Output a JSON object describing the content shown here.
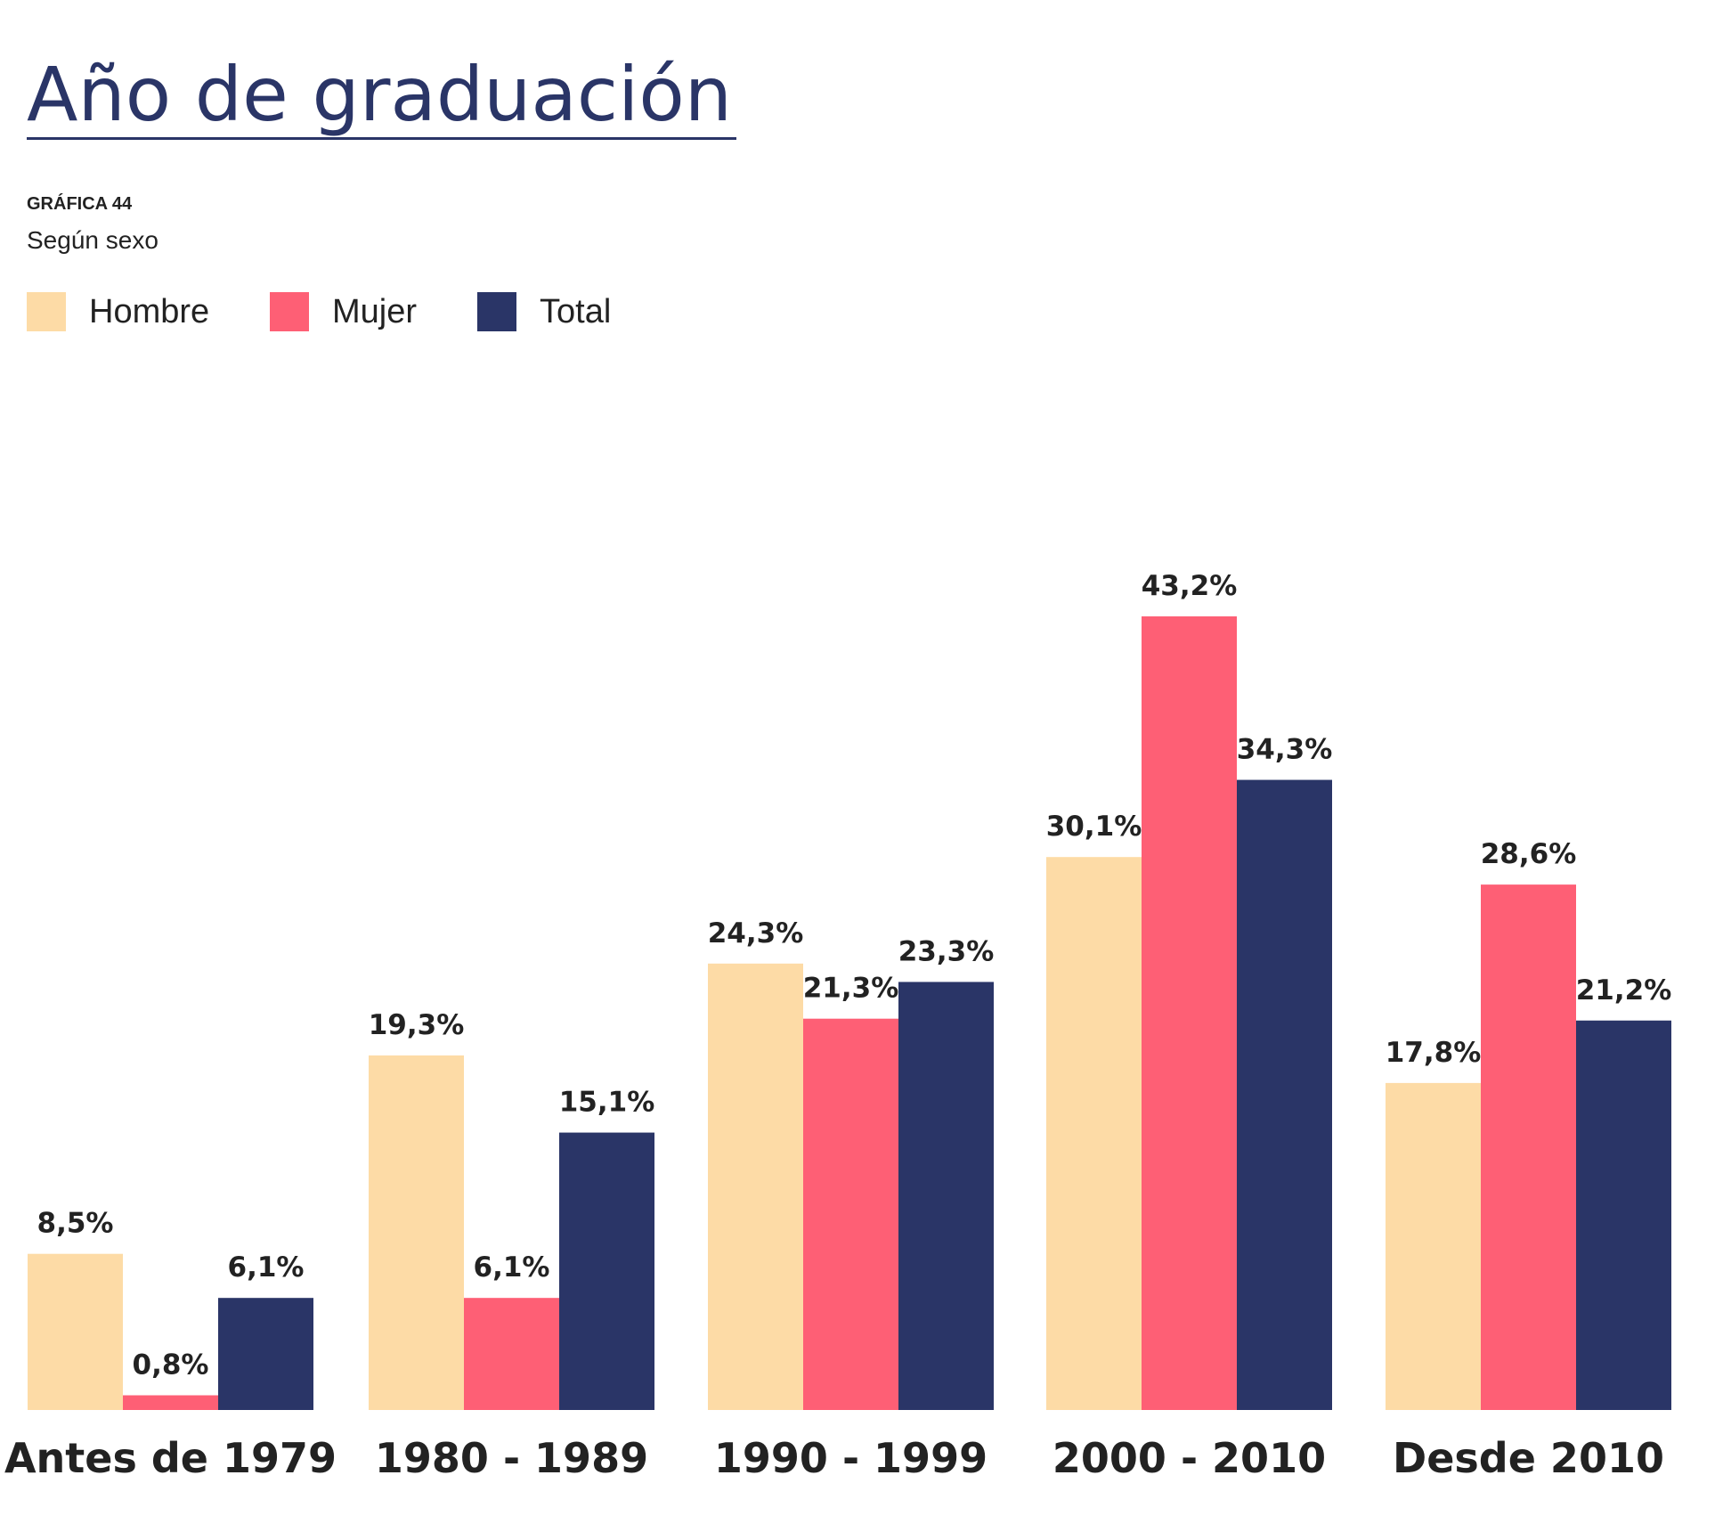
{
  "title": "Año de graduación",
  "chart_label": "GRÁFICA 44",
  "subtitle": "Según sexo",
  "colors": {
    "title": "#2a3567",
    "hombre": "#fddba6",
    "mujer": "#fe5f75",
    "total": "#2a3567",
    "text": "#222222"
  },
  "legend": [
    {
      "name": "Hombre",
      "color": "#fddba6"
    },
    {
      "name": "Mujer",
      "color": "#fe5f75"
    },
    {
      "name": "Total",
      "color": "#2a3567"
    }
  ],
  "chart_data": {
    "type": "bar",
    "title": "Año de graduación",
    "subtitle": "Según sexo",
    "xlabel": "",
    "ylabel": "",
    "ylim": [
      0,
      43.2
    ],
    "grid": false,
    "legend_position": "top-left",
    "categories": [
      "Antes de 1979",
      "1980 - 1989",
      "1990 - 1999",
      "2000 - 2010",
      "Desde 2010"
    ],
    "series": [
      {
        "name": "Hombre",
        "color": "#fddba6",
        "values": [
          8.5,
          19.3,
          24.3,
          30.1,
          17.8
        ],
        "labels": [
          "8,5%",
          "19,3%",
          "24,3%",
          "30,1%",
          "17,8%"
        ]
      },
      {
        "name": "Mujer",
        "color": "#fe5f75",
        "values": [
          0.8,
          6.1,
          21.3,
          43.2,
          28.6
        ],
        "labels": [
          "0,8%",
          "6,1%",
          "21,3%",
          "43,2%",
          "28,6%"
        ]
      },
      {
        "name": "Total",
        "color": "#2a3567",
        "values": [
          6.1,
          15.1,
          23.3,
          34.3,
          21.2
        ],
        "labels": [
          "6,1%",
          "15,1%",
          "23,3%",
          "34,3%",
          "21,2%"
        ]
      }
    ]
  }
}
